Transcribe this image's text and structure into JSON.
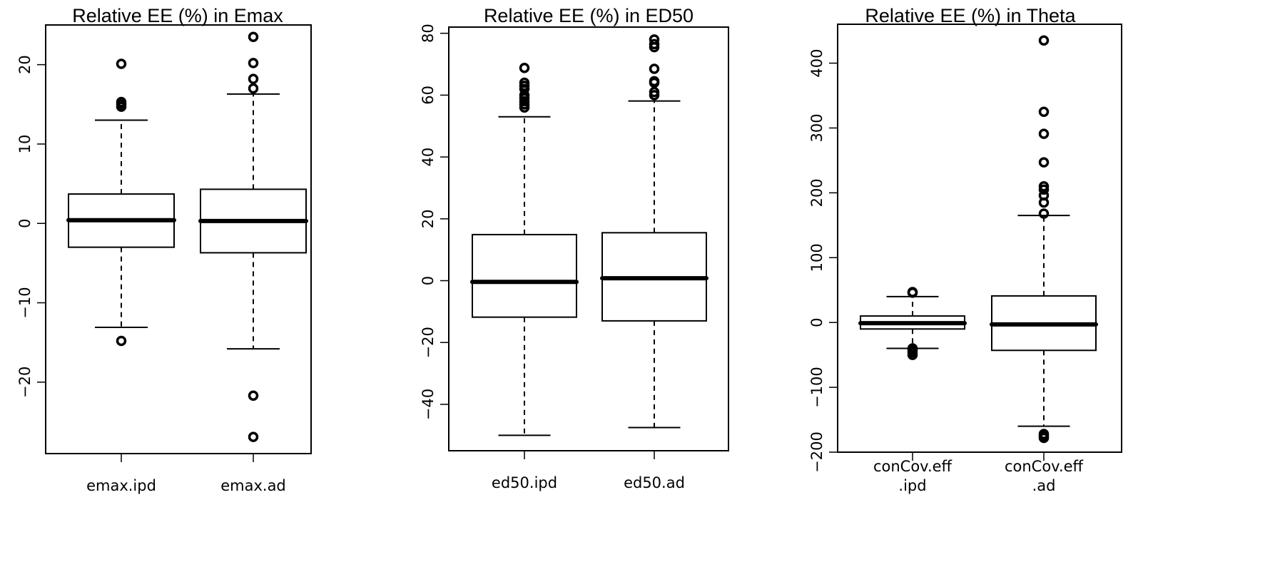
{
  "chart_data": [
    {
      "type": "boxplot",
      "title": "Relative EE (%) in Emax",
      "xlabel": "",
      "ylabel": "",
      "ylim": [
        -29,
        25
      ],
      "yticks": [
        -20,
        -10,
        0,
        10,
        20
      ],
      "yticklabels": [
        "−20",
        "−10",
        "0",
        "10",
        "20"
      ],
      "categories": [
        [
          "emax.ipd"
        ],
        [
          "emax.ad"
        ]
      ],
      "boxes": [
        {
          "q1": -3.0,
          "median": 0.4,
          "q3": 3.7,
          "whisker_low": -13.1,
          "whisker_high": 13.0,
          "outliers": [
            20.1,
            15.3,
            15.0,
            14.7,
            -14.8
          ]
        },
        {
          "q1": -3.7,
          "median": 0.3,
          "q3": 4.3,
          "whisker_low": -15.8,
          "whisker_high": 16.3,
          "outliers": [
            23.5,
            20.2,
            18.2,
            17.0,
            -21.7,
            -26.9
          ]
        }
      ]
    },
    {
      "type": "boxplot",
      "title": "Relative EE (%) in ED50",
      "xlabel": "",
      "ylabel": "",
      "ylim": [
        -55,
        82
      ],
      "yticks": [
        -40,
        -20,
        0,
        20,
        40,
        60,
        80
      ],
      "yticklabels": [
        "−40",
        "−20",
        "0",
        "20",
        "40",
        "60",
        "80"
      ],
      "categories": [
        [
          "ed50.ipd"
        ],
        [
          "ed50.ad"
        ]
      ],
      "boxes": [
        {
          "q1": -11.8,
          "median": -0.4,
          "q3": 14.9,
          "whisker_low": -50.0,
          "whisker_high": 53.0,
          "outliers": [
            68.8,
            64.0,
            63.0,
            62.0,
            60.0,
            59.0,
            58.0,
            57.0,
            56.0
          ]
        },
        {
          "q1": -13.0,
          "median": 0.8,
          "q3": 15.5,
          "whisker_low": -47.5,
          "whisker_high": 58.1,
          "outliers": [
            78.0,
            76.5,
            75.5,
            68.5,
            64.5,
            64.0,
            61.0,
            60.0
          ]
        }
      ]
    },
    {
      "type": "boxplot",
      "title": "Relative EE (%) in Theta",
      "xlabel": "",
      "ylabel": "",
      "ylim": [
        -200,
        460
      ],
      "yticks": [
        -200,
        -100,
        0,
        100,
        200,
        300,
        400
      ],
      "yticklabels": [
        "−200",
        "−100",
        "0",
        "100",
        "200",
        "300",
        "400"
      ],
      "categories": [
        [
          "conCov.eff",
          ".ipd"
        ],
        [
          "conCov.eff",
          ".ad"
        ]
      ],
      "boxes": [
        {
          "q1": -10.0,
          "median": -1.0,
          "q3": 10.0,
          "whisker_low": -40.0,
          "whisker_high": 40.0,
          "outliers": [
            47.0,
            46.0,
            -40.0,
            -43.0,
            -46.0,
            -50.0
          ]
        },
        {
          "q1": -43.0,
          "median": -3.0,
          "q3": 41.0,
          "whisker_low": -160.0,
          "whisker_high": 165.0,
          "outliers": [
            435.0,
            325.0,
            291.0,
            247.0,
            210.0,
            205.0,
            196.0,
            185.0,
            168.0,
            -172.0,
            -175.0,
            -178.0
          ]
        }
      ]
    }
  ]
}
